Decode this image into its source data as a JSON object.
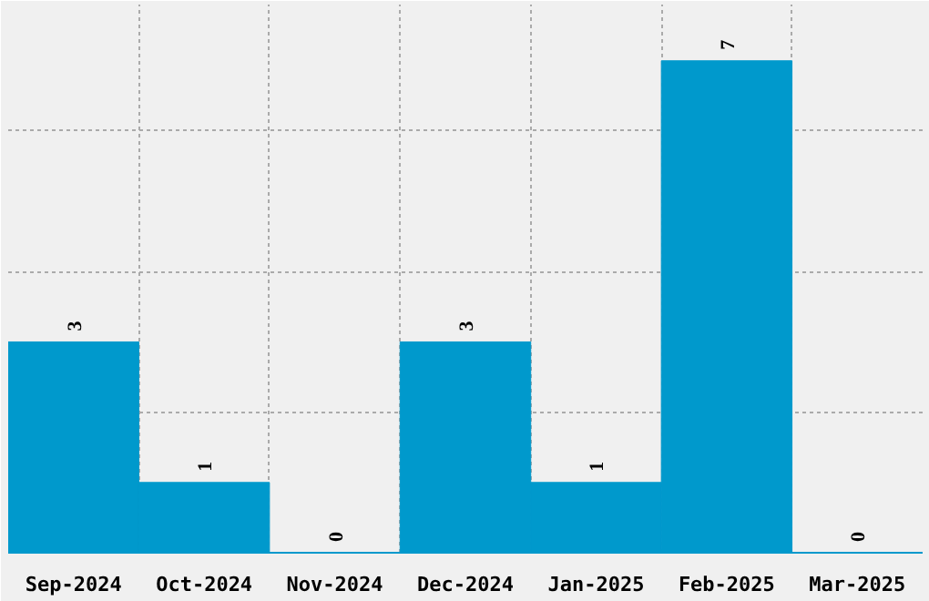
{
  "chart_data": {
    "type": "bar",
    "categories": [
      "Sep-2024",
      "Oct-2024",
      "Nov-2024",
      "Dec-2024",
      "Jan-2025",
      "Feb-2025",
      "Mar-2025"
    ],
    "values": [
      3,
      1,
      0,
      3,
      1,
      7,
      0
    ],
    "color": "#0099cc",
    "data_labels": true,
    "grid": true,
    "ylim": [
      0,
      7.8
    ],
    "yticks": [
      {
        "value": 2,
        "label": null
      },
      {
        "value": 4,
        "label": null
      },
      {
        "value": 6,
        "label": null
      }
    ],
    "tick_labels": "x"
  }
}
